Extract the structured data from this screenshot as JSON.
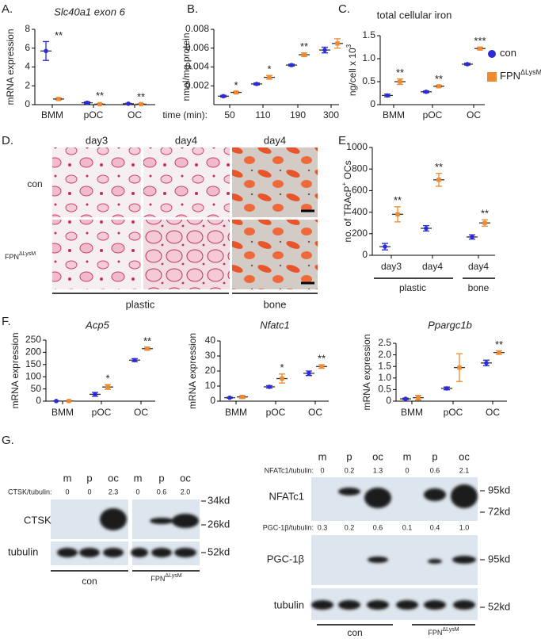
{
  "panel_labels": [
    "A.",
    "B.",
    "C.",
    "D.",
    "E.",
    "F.",
    "G."
  ],
  "chart_data": [
    {
      "type": "dot",
      "title": "Slc40a1 exon 6",
      "y_label": "mRNA expression",
      "categories": [
        "BMM",
        "pOC",
        "OC"
      ],
      "series": [
        {
          "color": "#2b2bd9",
          "values": [
            5.7,
            0.2,
            0.1
          ],
          "errors": [
            1.0,
            0.1,
            0.05
          ]
        },
        {
          "color": "#f08a30",
          "values": [
            0.6,
            0.05,
            0.05
          ],
          "errors": [
            0.1,
            0.05,
            0.05
          ]
        }
      ],
      "significance": [
        "**",
        "**",
        "**"
      ],
      "ylim": [
        0,
        8
      ],
      "yticks": [
        0,
        2,
        4,
        6,
        8
      ]
    },
    {
      "type": "dot",
      "y_label": "nmol/mg protein",
      "x_label": "time (min):",
      "categories": [
        "50",
        "110",
        "190",
        "300"
      ],
      "series": [
        {
          "color": "#2b2bd9",
          "values": [
            0.0009,
            0.0022,
            0.0042,
            0.0058
          ],
          "errors": [
            0.0001,
            0.0001,
            0.0001,
            0.0003
          ]
        },
        {
          "color": "#f08a30",
          "values": [
            0.0013,
            0.0029,
            0.0053,
            0.0065
          ],
          "errors": [
            0.0001,
            0.0002,
            0.0002,
            0.0005
          ]
        }
      ],
      "significance": [
        "*",
        "*",
        "**",
        null
      ],
      "ylim": [
        0,
        0.008
      ],
      "yticks": [
        0.002,
        0.004,
        0.006,
        0.008
      ]
    },
    {
      "type": "dot",
      "title": "total cellular iron",
      "y_label": [
        "ng/cell x 10",
        "3"
      ],
      "categories": [
        "BMM",
        "pOC",
        "OC"
      ],
      "series": [
        {
          "name": "con",
          "color": "#2b2bd9",
          "values": [
            0.2,
            0.28,
            0.88
          ],
          "errors": [
            0.03,
            0.02,
            0.02
          ]
        },
        {
          "name": "FPN",
          "name_sup": "ΔLysM",
          "color": "#f08a30",
          "values": [
            0.5,
            0.4,
            1.22
          ],
          "errors": [
            0.06,
            0.02,
            0.03
          ]
        }
      ],
      "significance": [
        "**",
        "**",
        "***"
      ],
      "ylim": [
        0,
        1.5
      ],
      "yticks": [
        0,
        0.5,
        {
          "value": 1,
          "label": "1.0"
        },
        1.5
      ],
      "legend": "right"
    },
    {
      "type": "dot",
      "y_label": [
        "no. of TRAcP",
        "+",
        " OCs"
      ],
      "categories": [
        "day3",
        "day4",
        "day4"
      ],
      "group_labels": [
        "plastic",
        "bone"
      ],
      "series": [
        {
          "color": "#2b2bd9",
          "values": [
            80,
            250,
            170
          ],
          "errors": [
            30,
            25,
            20
          ]
        },
        {
          "color": "#f08a30",
          "values": [
            380,
            700,
            300
          ],
          "errors": [
            70,
            60,
            30
          ]
        }
      ],
      "significance": [
        "**",
        "**",
        "**"
      ],
      "ylim": [
        0,
        1000
      ],
      "yticks": [
        0,
        200,
        400,
        600,
        800,
        1000
      ]
    },
    {
      "type": "dot",
      "title": "Acp5",
      "y_label": "mRNA expression",
      "categories": [
        "BMM",
        "pOC",
        "OC"
      ],
      "series": [
        {
          "color": "#2b2bd9",
          "values": [
            0.5,
            28,
            168
          ],
          "errors": [
            0.5,
            8,
            6
          ]
        },
        {
          "color": "#f08a30",
          "values": [
            0.5,
            58,
            215
          ],
          "errors": [
            0.5,
            10,
            6
          ]
        }
      ],
      "significance": [
        null,
        "*",
        "**"
      ],
      "ylim": [
        0,
        250
      ],
      "yticks": [
        0,
        50,
        100,
        150,
        200,
        250
      ]
    },
    {
      "type": "dot",
      "title": "Nfatc1",
      "y_label": "mRNA expression",
      "categories": [
        "BMM",
        "pOC",
        "OC"
      ],
      "series": [
        {
          "color": "#2b2bd9",
          "values": [
            2.3,
            9.5,
            18.5
          ],
          "errors": [
            0.3,
            0.8,
            1.5
          ]
        },
        {
          "color": "#f08a30",
          "values": [
            2.8,
            15,
            23
          ],
          "errors": [
            1,
            3,
            1.2
          ]
        }
      ],
      "significance": [
        null,
        "*",
        "**"
      ],
      "ylim": [
        0,
        40
      ],
      "yticks": [
        0,
        10,
        20,
        30,
        40
      ]
    },
    {
      "type": "dot",
      "title": "Ppargc1b",
      "y_label": "mRNA expression",
      "categories": [
        "BMM",
        "pOC",
        "OC"
      ],
      "series": [
        {
          "color": "#2b2bd9",
          "values": [
            0.1,
            0.55,
            1.65
          ],
          "errors": [
            0.03,
            0.06,
            0.12
          ]
        },
        {
          "color": "#f08a30",
          "values": [
            0.15,
            1.45,
            2.1
          ],
          "errors": [
            0.1,
            0.6,
            0.08
          ]
        }
      ],
      "significance": [
        null,
        null,
        "**"
      ],
      "ylim": [
        0,
        2.5
      ],
      "yticks": [
        0,
        0.5,
        {
          "value": 1,
          "label": "1.0"
        },
        1.5,
        {
          "value": 2,
          "label": "2.0"
        },
        2.5
      ]
    }
  ],
  "images": {
    "columns": [
      "day3",
      "day4",
      "day4"
    ],
    "rows": [
      "con",
      "FPN"
    ],
    "row_sup": "ΔLysM",
    "substrates": [
      "plastic",
      "bone"
    ]
  },
  "blots": {
    "left": {
      "lanes": [
        "m",
        "p",
        "oc",
        "m",
        "p",
        "oc"
      ],
      "ratio_label": "CTSK/tubulin:",
      "ratios": [
        "0",
        "0",
        "2.3",
        "0",
        "0.6",
        "2.0"
      ],
      "rows": [
        "CTSK",
        "tubulin"
      ],
      "markers": [
        "34kd",
        "26kd",
        "52kd"
      ],
      "groups": [
        "con",
        "FPN"
      ],
      "group_sup": "ΔLysM"
    },
    "right": {
      "lanes": [
        "m",
        "p",
        "oc",
        "m",
        "p",
        "oc"
      ],
      "ratio_labels": [
        "NFATc1/tubulin:",
        "PGC-1β/tubulin:"
      ],
      "ratios": [
        [
          "0",
          "0.2",
          "1.3",
          "0",
          "0.6",
          "2.1"
        ],
        [
          "0.3",
          "0.2",
          "0.6",
          "0.1",
          "0.4",
          "1.0"
        ]
      ],
      "rows": [
        "NFATc1",
        "PGC-1β",
        "tubulin"
      ],
      "markers": [
        "95kd",
        "72kd",
        "95kd",
        "52kd"
      ],
      "groups": [
        "con",
        "FPN"
      ],
      "group_sup": "ΔLysM"
    }
  }
}
